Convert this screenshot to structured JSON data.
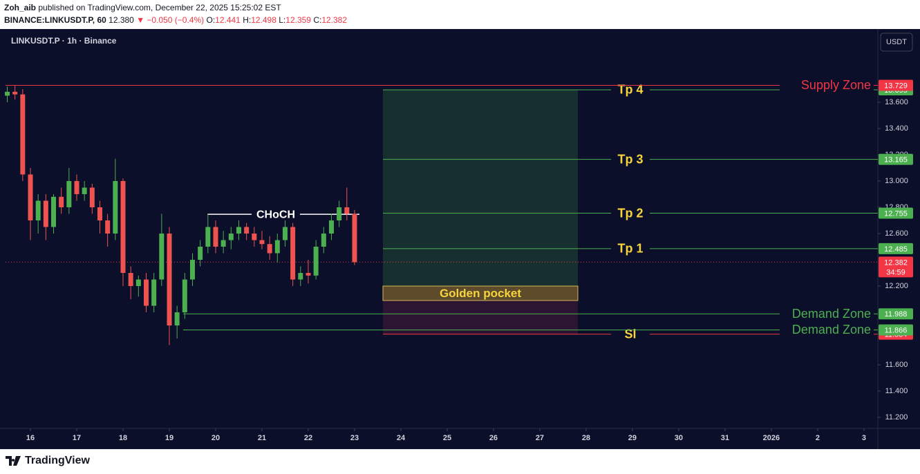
{
  "header": {
    "author": "Zoh_aib",
    "published": "published on TradingView.com, December 22, 2025 15:25:02 EST",
    "symbol": "BINANCE:LINKUSDT.P, 60",
    "price": "12.380",
    "change": "▼ −0.050 (−0.4%)",
    "ohlc": [
      {
        "key": "O:",
        "value": "12.441"
      },
      {
        "key": "H:",
        "value": "12.498"
      },
      {
        "key": "L:",
        "value": "12.359"
      },
      {
        "key": "C:",
        "value": "12.382"
      }
    ]
  },
  "footer": {
    "brand": "TradingView"
  },
  "chart_data": {
    "type": "candlestick",
    "title": "LINKUSDT.P · 1h · Binance",
    "currency": "USDT",
    "up_color": "#4caf50",
    "down_color": "#ef5350",
    "grid": false,
    "xlim": [
      -12.9,
      439.2
    ],
    "ylim": [
      11.116,
      14.142
    ],
    "xticks": [
      {
        "value": 0,
        "label": "16"
      },
      {
        "value": 24,
        "label": "17"
      },
      {
        "value": 48,
        "label": "18"
      },
      {
        "value": 72,
        "label": "19"
      },
      {
        "value": 96,
        "label": "20"
      },
      {
        "value": 120,
        "label": "21"
      },
      {
        "value": 144,
        "label": "22"
      },
      {
        "value": 168,
        "label": "23"
      },
      {
        "value": 192,
        "label": "24"
      },
      {
        "value": 216,
        "label": "25"
      },
      {
        "value": 240,
        "label": "26"
      },
      {
        "value": 264,
        "label": "27"
      },
      {
        "value": 288,
        "label": "28"
      },
      {
        "value": 312,
        "label": "29"
      },
      {
        "value": 336,
        "label": "30"
      },
      {
        "value": 360,
        "label": "31"
      },
      {
        "value": 384,
        "label": "2026"
      },
      {
        "value": 408,
        "label": "2"
      },
      {
        "value": 432,
        "label": "3"
      }
    ],
    "yticks": [
      {
        "value": 11.2,
        "label": "11.200"
      },
      {
        "value": 11.4,
        "label": "11.400"
      },
      {
        "value": 11.6,
        "label": "11.600"
      },
      {
        "value": 12.2,
        "label": "12.200"
      },
      {
        "value": 12.6,
        "label": "12.600"
      },
      {
        "value": 12.8,
        "label": "12.800"
      },
      {
        "value": 13.0,
        "label": "13.000"
      },
      {
        "value": 13.2,
        "label": "13.200"
      },
      {
        "value": 13.4,
        "label": "13.400"
      },
      {
        "value": 13.6,
        "label": "13.600"
      }
    ],
    "x": [
      -12,
      -8,
      -4,
      0,
      4,
      8,
      12,
      16,
      20,
      24,
      28,
      32,
      36,
      40,
      44,
      48,
      52,
      56,
      60,
      64,
      68,
      72,
      76,
      80,
      84,
      88,
      92,
      96,
      100,
      104,
      108,
      112,
      116,
      120,
      124,
      128,
      132,
      136,
      140,
      144,
      148,
      152,
      156,
      160,
      164,
      168
    ],
    "open": [
      13.65,
      13.68,
      13.66,
      13.05,
      12.7,
      12.85,
      12.65,
      12.88,
      12.8,
      13.0,
      12.9,
      12.95,
      12.8,
      12.7,
      12.6,
      13.0,
      12.3,
      12.2,
      12.25,
      12.05,
      12.25,
      12.6,
      11.9,
      12.0,
      12.25,
      12.4,
      12.5,
      12.65,
      12.5,
      12.55,
      12.6,
      12.65,
      12.6,
      12.55,
      12.52,
      12.45,
      12.55,
      12.65,
      12.25,
      12.3,
      12.28,
      12.5,
      12.6,
      12.7,
      12.8,
      12.75
    ],
    "high": [
      13.72,
      13.73,
      13.7,
      13.1,
      12.9,
      12.9,
      12.9,
      12.95,
      13.1,
      13.05,
      13.0,
      12.98,
      12.85,
      12.75,
      13.17,
      13.02,
      12.35,
      12.28,
      12.3,
      12.3,
      12.75,
      12.65,
      12.05,
      12.3,
      12.45,
      12.55,
      12.75,
      12.7,
      12.62,
      12.65,
      12.7,
      12.68,
      12.65,
      12.62,
      12.58,
      12.6,
      12.7,
      12.68,
      12.35,
      12.4,
      12.55,
      12.65,
      12.75,
      12.85,
      12.95,
      12.78
    ],
    "low": [
      13.6,
      13.62,
      13.0,
      12.55,
      12.6,
      12.55,
      12.6,
      12.75,
      12.75,
      12.85,
      12.85,
      12.75,
      12.6,
      12.5,
      12.55,
      12.2,
      12.1,
      12.12,
      12.0,
      12.0,
      12.2,
      11.75,
      11.8,
      11.95,
      12.2,
      12.35,
      12.45,
      12.45,
      12.45,
      12.48,
      12.55,
      12.55,
      12.5,
      12.48,
      12.4,
      12.38,
      12.5,
      12.2,
      12.2,
      12.22,
      12.25,
      12.45,
      12.55,
      12.65,
      12.7,
      12.36
    ],
    "close": [
      13.68,
      13.66,
      13.05,
      12.7,
      12.85,
      12.65,
      12.88,
      12.8,
      13.0,
      12.9,
      12.95,
      12.8,
      12.7,
      12.6,
      13.0,
      12.3,
      12.2,
      12.25,
      12.05,
      12.25,
      12.6,
      11.9,
      12.0,
      12.25,
      12.4,
      12.5,
      12.65,
      12.5,
      12.55,
      12.6,
      12.65,
      12.6,
      12.55,
      12.52,
      12.45,
      12.55,
      12.65,
      12.25,
      12.3,
      12.28,
      12.5,
      12.6,
      12.7,
      12.8,
      12.75,
      12.382
    ],
    "last": {
      "value": 12.382,
      "countdown": "34:59",
      "color": "#f23645"
    },
    "position": {
      "target": 13.695,
      "stop": 11.834,
      "profit_color": "#17302f",
      "loss_color": "#2c1533"
    },
    "golden_pocket": {
      "label": "Golden pocket",
      "top": 12.2,
      "bottom": 12.09,
      "color": "#5e4b2c",
      "border": "#d9b45a",
      "label_color": "#f7d33c"
    },
    "choch": {
      "label": "CHoCH",
      "value": 12.747,
      "color": "#ffffff"
    },
    "targets": [
      {
        "label": "Tp 4",
        "value": 13.695,
        "color": "#4caf50"
      },
      {
        "label": "Tp 3",
        "value": 13.165,
        "color": "#4caf50"
      },
      {
        "label": "Tp 2",
        "value": 12.755,
        "color": "#4caf50"
      },
      {
        "label": "Tp 1",
        "value": 12.485,
        "color": "#4caf50"
      },
      {
        "label": "Sl",
        "value": 11.834,
        "color": "#f23645"
      }
    ],
    "target_label_color": "#f7d33c",
    "zones": [
      {
        "label": "Supply Zone",
        "value": 13.729,
        "color": "#f23645"
      },
      {
        "label": "Demand Zone",
        "value": 11.988,
        "color": "#4caf50"
      },
      {
        "label": "Demand Zone",
        "value": 11.866,
        "color": "#4caf50"
      }
    ]
  }
}
